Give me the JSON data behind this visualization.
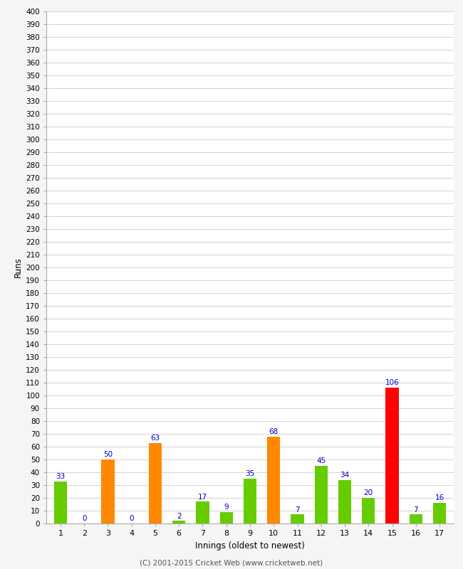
{
  "innings": [
    1,
    2,
    3,
    4,
    5,
    6,
    7,
    8,
    9,
    10,
    11,
    12,
    13,
    14,
    15,
    16,
    17
  ],
  "values": [
    33,
    0,
    50,
    0,
    63,
    2,
    17,
    9,
    35,
    68,
    7,
    45,
    34,
    20,
    106,
    7,
    16
  ],
  "colors": [
    "#66cc00",
    "#66cc00",
    "#ff8800",
    "#66cc00",
    "#ff8800",
    "#66cc00",
    "#66cc00",
    "#66cc00",
    "#66cc00",
    "#ff8800",
    "#66cc00",
    "#66cc00",
    "#66cc00",
    "#66cc00",
    "#ff0000",
    "#66cc00",
    "#66cc00"
  ],
  "xlabel": "Innings (oldest to newest)",
  "ylabel": "Runs",
  "ylim": [
    0,
    400
  ],
  "ytick_step": 10,
  "background_color": "#f5f5f5",
  "plot_bg_color": "#ffffff",
  "label_color": "#0000cc",
  "footer": "(C) 2001-2015 Cricket Web (www.cricketweb.net)"
}
